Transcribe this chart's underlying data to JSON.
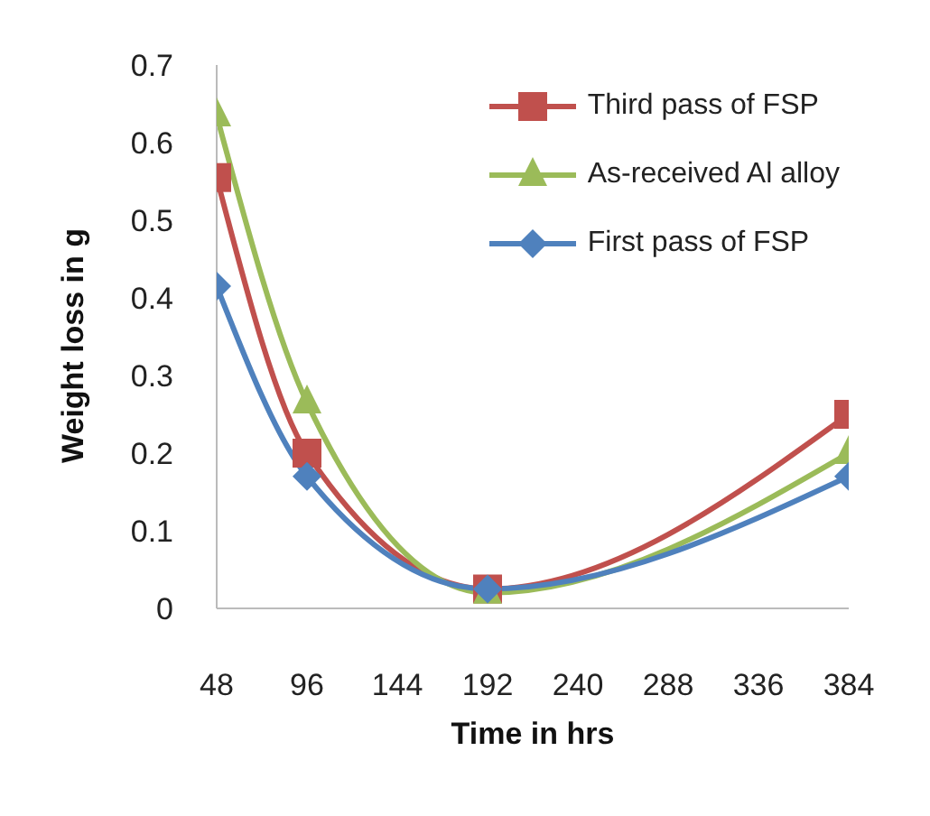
{
  "chart_data": {
    "type": "line",
    "xlabel": "Time in hrs",
    "ylabel": "Weight loss in g",
    "x": [
      48,
      96,
      192,
      384
    ],
    "series": [
      {
        "name": "Third pass of FSP",
        "color": "#c0504d",
        "marker": "square",
        "values": [
          0.555,
          0.2,
          0.025,
          0.25
        ]
      },
      {
        "name": "As-received Al alloy",
        "color": "#9bbb59",
        "marker": "triangle",
        "values": [
          0.635,
          0.265,
          0.02,
          0.2
        ]
      },
      {
        "name": "First pass of FSP",
        "color": "#4f81bd",
        "marker": "diamond",
        "values": [
          0.415,
          0.17,
          0.025,
          0.17
        ]
      }
    ],
    "xlim": [
      48,
      384
    ],
    "xticks": [
      48,
      96,
      144,
      192,
      240,
      288,
      336,
      384
    ],
    "ylim": [
      0,
      0.7
    ],
    "yticks": [
      0,
      0.1,
      0.2,
      0.3,
      0.4,
      0.5,
      0.6,
      0.7
    ],
    "grid": false,
    "legend": "top right"
  }
}
